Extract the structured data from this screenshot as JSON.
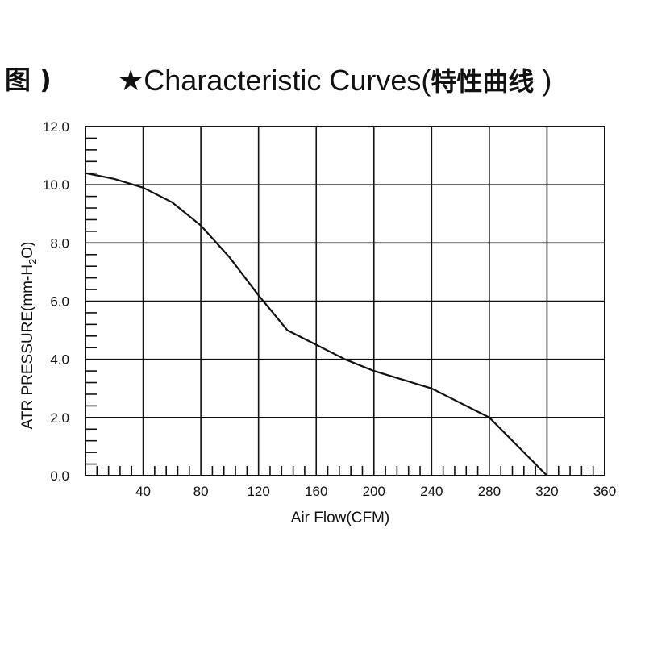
{
  "header": {
    "fragment": "图 )",
    "star": "★",
    "title_en": "Characteristic Curves(",
    "title_zh": "特性曲线",
    "title_close": " )"
  },
  "chart_data": {
    "type": "line",
    "title": "",
    "xlabel": "Air Flow(CFM)",
    "ylabel": "ATR PRESSURE(mm-H2O)",
    "ylabel_parts": {
      "main": "ATR PRESSURE(mm-H",
      "sub": "2",
      "end": "O)"
    },
    "xlim": [
      0,
      360
    ],
    "ylim": [
      0,
      12
    ],
    "x_ticks": [
      "40",
      "80",
      "120",
      "160",
      "200",
      "240",
      "280",
      "320",
      "360"
    ],
    "y_ticks": [
      "0.0",
      "2.0",
      "4.0",
      "6.0",
      "8.0",
      "10.0",
      "12.0"
    ],
    "x_tick_values": [
      40,
      80,
      120,
      160,
      200,
      240,
      280,
      320,
      360
    ],
    "y_tick_values": [
      0,
      2,
      4,
      6,
      8,
      10,
      12
    ],
    "grid": true,
    "series": [
      {
        "x": [
          0,
          20,
          40,
          60,
          80,
          100,
          120,
          140,
          160,
          180,
          200,
          220,
          240,
          260,
          280,
          300,
          320
        ],
        "y": [
          10.4,
          10.2,
          9.9,
          9.4,
          8.6,
          7.5,
          6.2,
          5.0,
          4.5,
          4.0,
          3.6,
          3.3,
          3.0,
          2.5,
          2.0,
          1.0,
          0.0
        ]
      }
    ]
  }
}
